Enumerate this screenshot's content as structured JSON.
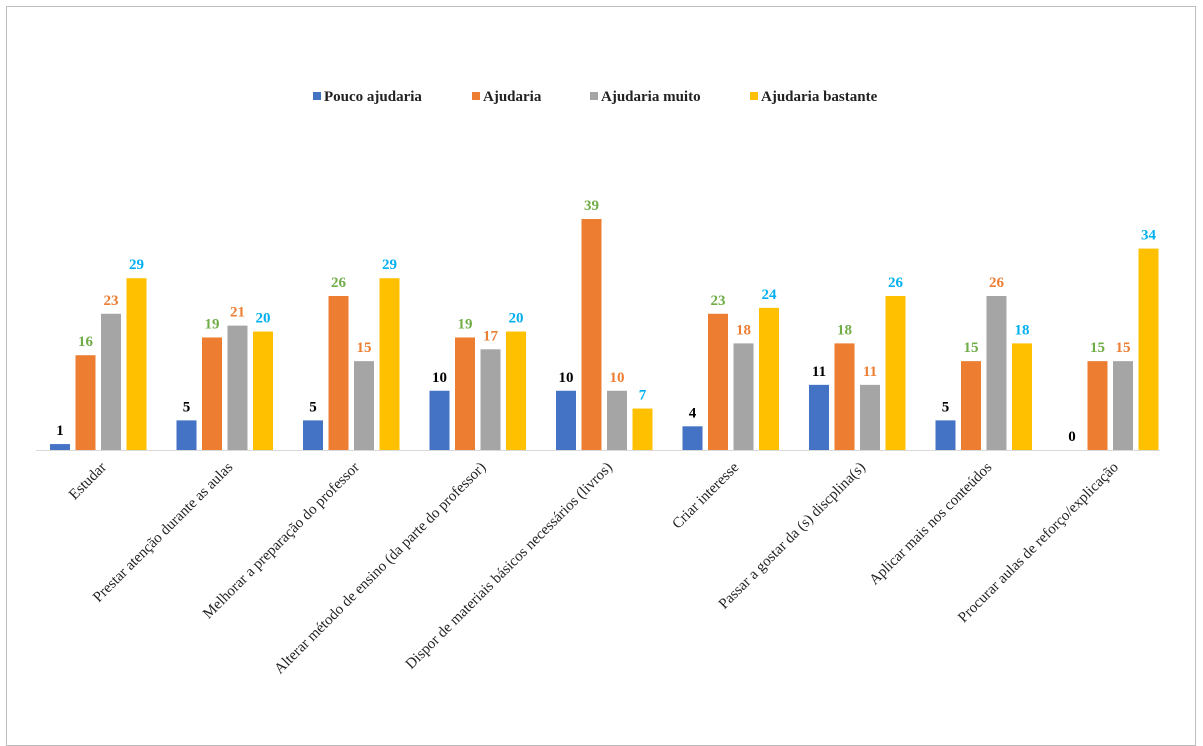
{
  "chart_data": {
    "type": "bar",
    "title": "",
    "xlabel": "",
    "ylabel": "",
    "ylim": [
      0,
      39
    ],
    "grid": false,
    "legend_position": "top",
    "categories": [
      "Estudar",
      "Prestar atenção durante as aulas",
      "Melhorar a preparação do professor",
      "Alterar método de ensino (da parte do professor)",
      "Dispor de materiais básicos necessários (livros)",
      "Criar interesse",
      "Passar a gostar da (s) discplina(s)",
      "Aplicar mais nos conteúdos",
      "Procurar aulas de reforço/explicação"
    ],
    "series": [
      {
        "name": "Pouco ajudaria",
        "color": "#4472C4",
        "label_color": "#000000",
        "values": [
          1,
          5,
          5,
          10,
          10,
          4,
          11,
          5,
          0
        ]
      },
      {
        "name": "Ajudaria",
        "color": "#ED7D31",
        "label_color": "#70AD47",
        "values": [
          16,
          19,
          26,
          19,
          39,
          23,
          18,
          15,
          15
        ]
      },
      {
        "name": "Ajudaria muito",
        "color": "#A5A5A5",
        "label_color": "#ED7D31",
        "values": [
          23,
          21,
          15,
          17,
          10,
          18,
          11,
          26,
          15
        ]
      },
      {
        "name": "Ajudaria bastante",
        "color": "#FFC000",
        "label_color": "#00B0F0",
        "values": [
          29,
          20,
          29,
          20,
          7,
          24,
          26,
          18,
          34
        ]
      }
    ]
  }
}
